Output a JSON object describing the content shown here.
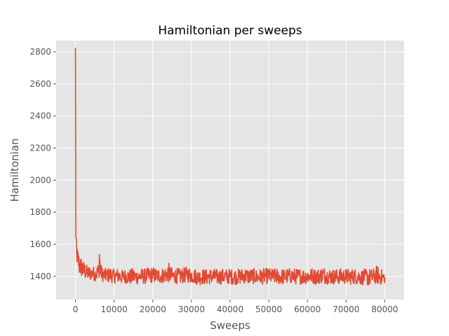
{
  "chart_data": {
    "type": "line",
    "title": "Hamiltonian per sweeps",
    "xlabel": "Sweeps",
    "ylabel": "Hamiltonian",
    "xlim": [
      -5000,
      85000
    ],
    "ylim": [
      1255,
      2870
    ],
    "xticks": [
      0,
      10000,
      20000,
      30000,
      40000,
      50000,
      60000,
      70000,
      80000
    ],
    "yticks": [
      1400,
      1600,
      1800,
      2000,
      2200,
      2400,
      2600,
      2800
    ],
    "grid": true,
    "legend": "none",
    "series": [
      {
        "color": "#e24a33",
        "x": [
          0,
          50,
          100,
          200,
          300,
          500,
          800,
          1000,
          1500,
          2000,
          2500,
          3000,
          3500,
          4000,
          4500,
          5000,
          5500,
          6000,
          6200,
          6500,
          7000,
          8000,
          9000,
          10000,
          11000,
          12000,
          13000,
          14000,
          15000,
          16000,
          17000,
          18000,
          19000,
          20000,
          21000,
          22000,
          23000,
          24000,
          25000,
          26000,
          27000,
          28000,
          29000,
          30000,
          31000,
          32000,
          33000,
          34000,
          35000,
          36000,
          37000,
          38000,
          39000,
          40000,
          41000,
          42000,
          43000,
          44000,
          45000,
          46000,
          47000,
          48000,
          49000,
          50000,
          51000,
          52000,
          53000,
          54000,
          55000,
          56000,
          57000,
          58000,
          59000,
          60000,
          61000,
          62000,
          63000,
          64000,
          65000,
          66000,
          67000,
          68000,
          69000,
          70000,
          71000,
          72000,
          73000,
          74000,
          75000,
          76000,
          77000,
          78000,
          79000,
          80000
        ],
        "y": [
          2825,
          2300,
          1660,
          1590,
          1560,
          1520,
          1490,
          1470,
          1460,
          1440,
          1430,
          1420,
          1420,
          1415,
          1420,
          1410,
          1420,
          1440,
          1535,
          1430,
          1410,
          1405,
          1410,
          1400,
          1405,
          1395,
          1400,
          1398,
          1400,
          1395,
          1402,
          1400,
          1405,
          1408,
          1400,
          1402,
          1405,
          1410,
          1400,
          1402,
          1398,
          1405,
          1410,
          1405,
          1400,
          1395,
          1398,
          1395,
          1400,
          1398,
          1395,
          1400,
          1398,
          1400,
          1395,
          1398,
          1400,
          1402,
          1398,
          1400,
          1395,
          1398,
          1400,
          1402,
          1398,
          1400,
          1396,
          1398,
          1400,
          1402,
          1398,
          1400,
          1398,
          1400,
          1402,
          1398,
          1400,
          1405,
          1400,
          1398,
          1396,
          1398,
          1400,
          1398,
          1396,
          1400,
          1398,
          1395,
          1398,
          1396,
          1398,
          1400,
          1396,
          1390
        ],
        "band_low": [
          2825,
          2300,
          1620,
          1540,
          1480,
          1450,
          1420,
          1400,
          1390,
          1380,
          1380,
          1375,
          1372,
          1375,
          1375,
          1372,
          1370,
          1380,
          1400,
          1380,
          1365,
          1360,
          1362,
          1355,
          1358,
          1350,
          1355,
          1345,
          1350,
          1350,
          1355,
          1352,
          1355,
          1360,
          1358,
          1355,
          1360,
          1362,
          1355,
          1355,
          1350,
          1358,
          1360,
          1358,
          1352,
          1345,
          1350,
          1348,
          1352,
          1350,
          1348,
          1352,
          1350,
          1352,
          1348,
          1350,
          1352,
          1355,
          1350,
          1352,
          1348,
          1350,
          1352,
          1355,
          1350,
          1352,
          1348,
          1350,
          1352,
          1355,
          1350,
          1352,
          1350,
          1352,
          1355,
          1350,
          1352,
          1358,
          1352,
          1350,
          1348,
          1350,
          1352,
          1350,
          1348,
          1352,
          1350,
          1345,
          1350,
          1335,
          1350,
          1352,
          1348,
          1355
        ],
        "band_high": [
          2825,
          2300,
          1700,
          1640,
          1610,
          1580,
          1560,
          1540,
          1520,
          1500,
          1485,
          1470,
          1465,
          1460,
          1465,
          1455,
          1465,
          1490,
          1540,
          1480,
          1455,
          1450,
          1458,
          1445,
          1452,
          1440,
          1448,
          1445,
          1450,
          1440,
          1450,
          1448,
          1455,
          1460,
          1450,
          1452,
          1455,
          1490,
          1450,
          1452,
          1448,
          1455,
          1460,
          1455,
          1448,
          1440,
          1448,
          1442,
          1450,
          1448,
          1442,
          1448,
          1446,
          1450,
          1442,
          1448,
          1450,
          1455,
          1448,
          1450,
          1442,
          1448,
          1450,
          1452,
          1448,
          1450,
          1445,
          1448,
          1450,
          1452,
          1448,
          1450,
          1448,
          1450,
          1452,
          1448,
          1450,
          1465,
          1452,
          1448,
          1445,
          1448,
          1450,
          1448,
          1446,
          1450,
          1448,
          1440,
          1448,
          1445,
          1448,
          1470,
          1446,
          1430
        ]
      }
    ]
  }
}
